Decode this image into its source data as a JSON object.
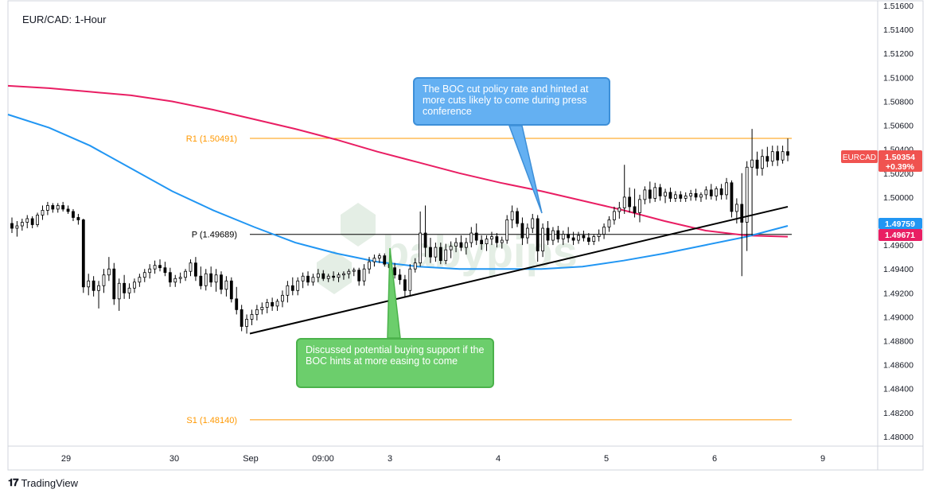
{
  "header": {
    "title": "EUR/CAD: 1-Hour"
  },
  "footer": {
    "brand": "TradingView"
  },
  "price_badges": {
    "symbol": "EURCAD",
    "last": "1.50354",
    "change": "+0.39%",
    "blue_ma": "1.49759",
    "pink_ma": "1.49671",
    "colors": {
      "symbol_bg": "#f05350",
      "blue": "#2196f3",
      "pink": "#e91e63"
    }
  },
  "annotations": {
    "boc_cut": "The BOC cut policy rate and hinted at more cuts likely to come during press conference",
    "buying_support": "Discussed potential buying support if the BOC hints at more easing to come"
  },
  "chart_data": {
    "type": "candlestick",
    "title": "EUR/CAD: 1-Hour",
    "y_axis_side": "right",
    "ylim": [
      1.4792,
      1.5164
    ],
    "y_ticks": [
      "1.51600",
      "1.51400",
      "1.51200",
      "1.51000",
      "1.50800",
      "1.50600",
      "1.50400",
      "1.50200",
      "1.50000",
      "1.49800",
      "1.49600",
      "1.49400",
      "1.49200",
      "1.49000",
      "1.48800",
      "1.48600",
      "1.48400",
      "1.48200",
      "1.48000"
    ],
    "x_ticks": [
      "29",
      "30",
      "Sep",
      "09:00",
      "3",
      "4",
      "5",
      "6",
      "9"
    ],
    "levels": [
      {
        "name": "R1",
        "label": "R1 (1.50491)",
        "value": 1.50491,
        "color": "#ff9800"
      },
      {
        "name": "P",
        "label": "P (1.49689)",
        "value": 1.49689,
        "color": "#000000"
      },
      {
        "name": "S1",
        "label": "S1 (1.48140)",
        "value": 1.4814,
        "color": "#ff9800"
      }
    ],
    "moving_averages": [
      {
        "color": "#e91e63",
        "points": [
          [
            0,
            1.5093
          ],
          [
            1,
            1.5091
          ],
          [
            2,
            1.5088
          ],
          [
            3,
            1.5085
          ],
          [
            4,
            1.508
          ],
          [
            5,
            1.5073
          ],
          [
            6,
            1.5065
          ],
          [
            7,
            1.5057
          ],
          [
            8,
            1.5048
          ],
          [
            9,
            1.5038
          ],
          [
            10,
            1.5029
          ],
          [
            11,
            1.502
          ],
          [
            12,
            1.5012
          ],
          [
            13,
            1.5005
          ],
          [
            14,
            1.4997
          ],
          [
            15,
            1.4989
          ],
          [
            16,
            1.498
          ],
          [
            17,
            1.4972
          ],
          [
            18,
            1.4968
          ],
          [
            19,
            1.4967
          ]
        ]
      },
      {
        "color": "#2196f3",
        "points": [
          [
            0,
            1.5069
          ],
          [
            1,
            1.5058
          ],
          [
            2,
            1.5043
          ],
          [
            3,
            1.5024
          ],
          [
            4,
            1.5005
          ],
          [
            5,
            1.4989
          ],
          [
            6,
            1.4975
          ],
          [
            7,
            1.4962
          ],
          [
            8,
            1.4953
          ],
          [
            9,
            1.4946
          ],
          [
            10,
            1.4942
          ],
          [
            11,
            1.494
          ],
          [
            12,
            1.494
          ],
          [
            13,
            1.494
          ],
          [
            14,
            1.4942
          ],
          [
            15,
            1.4947
          ],
          [
            16,
            1.4953
          ],
          [
            17,
            1.496
          ],
          [
            18,
            1.4967
          ],
          [
            19,
            1.4976
          ]
        ]
      }
    ],
    "trendline": {
      "start": [
        0,
        1.4886
      ],
      "end": [
        1,
        1.4992
      ]
    },
    "candles": [
      [
        1.4978,
        1.4983,
        1.497,
        1.4974
      ],
      [
        1.4974,
        1.498,
        1.4967,
        1.4976
      ],
      [
        1.4976,
        1.4982,
        1.4972,
        1.4979
      ],
      [
        1.4979,
        1.4985,
        1.4974,
        1.4982
      ],
      [
        1.4982,
        1.4984,
        1.4974,
        1.4977
      ],
      [
        1.4977,
        1.4987,
        1.4975,
        1.4985
      ],
      [
        1.4985,
        1.4993,
        1.4981,
        1.4989
      ],
      [
        1.4989,
        1.4996,
        1.4985,
        1.4993
      ],
      [
        1.4993,
        1.4995,
        1.4987,
        1.499
      ],
      [
        1.499,
        1.4995,
        1.4987,
        1.4993
      ],
      [
        1.4993,
        1.4996,
        1.4988,
        1.499
      ],
      [
        1.499,
        1.4993,
        1.4986,
        1.4988
      ],
      [
        1.4988,
        1.499,
        1.498,
        1.4983
      ],
      [
        1.4983,
        1.4986,
        1.4977,
        1.4981
      ],
      [
        1.4981,
        1.4982,
        1.492,
        1.4925
      ],
      [
        1.4925,
        1.4936,
        1.4918,
        1.493
      ],
      [
        1.493,
        1.4934,
        1.4917,
        1.4922
      ],
      [
        1.4922,
        1.493,
        1.4907,
        1.4926
      ],
      [
        1.4926,
        1.494,
        1.492,
        1.4935
      ],
      [
        1.4935,
        1.495,
        1.493,
        1.494
      ],
      [
        1.494,
        1.4945,
        1.491,
        1.4915
      ],
      [
        1.4915,
        1.4932,
        1.4905,
        1.4928
      ],
      [
        1.4928,
        1.4935,
        1.4915,
        1.492
      ],
      [
        1.492,
        1.4928,
        1.4915,
        1.4924
      ],
      [
        1.4924,
        1.4932,
        1.492,
        1.4929
      ],
      [
        1.4929,
        1.4936,
        1.4925,
        1.4933
      ],
      [
        1.4933,
        1.494,
        1.4929,
        1.4937
      ],
      [
        1.4937,
        1.4944,
        1.4932,
        1.494
      ],
      [
        1.494,
        1.4947,
        1.4936,
        1.4943
      ],
      [
        1.4943,
        1.4948,
        1.4938,
        1.4941
      ],
      [
        1.4941,
        1.4946,
        1.4934,
        1.4937
      ],
      [
        1.4937,
        1.4941,
        1.4925,
        1.4929
      ],
      [
        1.4929,
        1.4935,
        1.4925,
        1.4932
      ],
      [
        1.4932,
        1.4937,
        1.4928,
        1.4933
      ],
      [
        1.4933,
        1.494,
        1.493,
        1.4938
      ],
      [
        1.4938,
        1.4948,
        1.4934,
        1.4945
      ],
      [
        1.4945,
        1.495,
        1.493,
        1.4934
      ],
      [
        1.4934,
        1.4942,
        1.4923,
        1.4926
      ],
      [
        1.4926,
        1.494,
        1.4922,
        1.4936
      ],
      [
        1.4936,
        1.4942,
        1.4925,
        1.4929
      ],
      [
        1.4929,
        1.494,
        1.4921,
        1.4935
      ],
      [
        1.4935,
        1.4938,
        1.4919,
        1.4923
      ],
      [
        1.4923,
        1.4934,
        1.4917,
        1.493
      ],
      [
        1.493,
        1.4933,
        1.4912,
        1.4915
      ],
      [
        1.4915,
        1.4925,
        1.4902,
        1.4906
      ],
      [
        1.4906,
        1.491,
        1.4888,
        1.4892
      ],
      [
        1.4892,
        1.4902,
        1.4886,
        1.4898
      ],
      [
        1.4898,
        1.4906,
        1.4893,
        1.4902
      ],
      [
        1.4902,
        1.491,
        1.4897,
        1.4906
      ],
      [
        1.4906,
        1.4912,
        1.4902,
        1.4908
      ],
      [
        1.4908,
        1.4915,
        1.4903,
        1.4912
      ],
      [
        1.4912,
        1.4916,
        1.4905,
        1.4909
      ],
      [
        1.4909,
        1.4915,
        1.4905,
        1.4913
      ],
      [
        1.4913,
        1.4922,
        1.4908,
        1.4918
      ],
      [
        1.4918,
        1.493,
        1.4912,
        1.4926
      ],
      [
        1.4926,
        1.4933,
        1.4918,
        1.4922
      ],
      [
        1.4922,
        1.4933,
        1.4918,
        1.493
      ],
      [
        1.493,
        1.4937,
        1.4924,
        1.4934
      ],
      [
        1.4934,
        1.4938,
        1.4926,
        1.4929
      ],
      [
        1.4929,
        1.4936,
        1.4926,
        1.4933
      ],
      [
        1.4933,
        1.494,
        1.4929,
        1.4936
      ],
      [
        1.4936,
        1.4939,
        1.493,
        1.4932
      ],
      [
        1.4932,
        1.4936,
        1.4929,
        1.4934
      ],
      [
        1.4934,
        1.4938,
        1.493,
        1.4933
      ],
      [
        1.4933,
        1.4937,
        1.4929,
        1.4935
      ],
      [
        1.4935,
        1.4938,
        1.4931,
        1.4936
      ],
      [
        1.4936,
        1.494,
        1.4932,
        1.4938
      ],
      [
        1.4938,
        1.4941,
        1.4934,
        1.4939
      ],
      [
        1.4939,
        1.4941,
        1.4926,
        1.493
      ],
      [
        1.493,
        1.4944,
        1.4926,
        1.494
      ],
      [
        1.494,
        1.495,
        1.4936,
        1.4946
      ],
      [
        1.4946,
        1.4952,
        1.4942,
        1.4949
      ],
      [
        1.4949,
        1.4953,
        1.4945,
        1.4951
      ],
      [
        1.4951,
        1.4953,
        1.4942,
        1.4944
      ],
      [
        1.4944,
        1.4948,
        1.4937,
        1.4941
      ],
      [
        1.4941,
        1.4945,
        1.4932,
        1.4935
      ],
      [
        1.4935,
        1.494,
        1.4927,
        1.4931
      ],
      [
        1.4931,
        1.4935,
        1.4916,
        1.4922
      ],
      [
        1.4922,
        1.4944,
        1.4918,
        1.494
      ],
      [
        1.494,
        1.4949,
        1.4937,
        1.4945
      ],
      [
        1.4945,
        1.4988,
        1.4942,
        1.497
      ],
      [
        1.497,
        1.4993,
        1.495,
        1.4958
      ],
      [
        1.4958,
        1.4966,
        1.4945,
        1.495
      ],
      [
        1.495,
        1.4962,
        1.4946,
        1.4958
      ],
      [
        1.4958,
        1.4962,
        1.4944,
        1.4947
      ],
      [
        1.4947,
        1.4961,
        1.4944,
        1.4956
      ],
      [
        1.4956,
        1.4963,
        1.4949,
        1.4959
      ],
      [
        1.4959,
        1.4966,
        1.4954,
        1.4962
      ],
      [
        1.4962,
        1.4968,
        1.4955,
        1.4958
      ],
      [
        1.4958,
        1.4966,
        1.4952,
        1.4962
      ],
      [
        1.4962,
        1.4975,
        1.4958,
        1.497
      ],
      [
        1.497,
        1.4978,
        1.496,
        1.4964
      ],
      [
        1.4964,
        1.4968,
        1.4956,
        1.4961
      ],
      [
        1.4961,
        1.4968,
        1.4955,
        1.4965
      ],
      [
        1.4965,
        1.4971,
        1.496,
        1.4967
      ],
      [
        1.4967,
        1.497,
        1.4958,
        1.4962
      ],
      [
        1.4962,
        1.4967,
        1.4957,
        1.4964
      ],
      [
        1.4964,
        1.4985,
        1.4961,
        1.4981
      ],
      [
        1.4981,
        1.4993,
        1.4974,
        1.4988
      ],
      [
        1.4988,
        1.4991,
        1.4975,
        1.4978
      ],
      [
        1.4978,
        1.4983,
        1.496,
        1.4966
      ],
      [
        1.4966,
        1.4978,
        1.4961,
        1.4974
      ],
      [
        1.4974,
        1.4986,
        1.497,
        1.4982
      ],
      [
        1.4982,
        1.4985,
        1.4946,
        1.4955
      ],
      [
        1.4955,
        1.4978,
        1.495,
        1.4974
      ],
      [
        1.4974,
        1.498,
        1.496,
        1.4964
      ],
      [
        1.4964,
        1.4975,
        1.496,
        1.4972
      ],
      [
        1.4972,
        1.4976,
        1.4962,
        1.4965
      ],
      [
        1.4965,
        1.4972,
        1.496,
        1.4969
      ],
      [
        1.4969,
        1.4975,
        1.4962,
        1.4966
      ],
      [
        1.4966,
        1.4971,
        1.496,
        1.4964
      ],
      [
        1.4964,
        1.4971,
        1.4961,
        1.4968
      ],
      [
        1.4968,
        1.4972,
        1.4963,
        1.4966
      ],
      [
        1.4966,
        1.497,
        1.496,
        1.4963
      ],
      [
        1.4963,
        1.4969,
        1.496,
        1.4967
      ],
      [
        1.4967,
        1.4973,
        1.4963,
        1.4969
      ],
      [
        1.4969,
        1.4978,
        1.4965,
        1.4975
      ],
      [
        1.4975,
        1.4984,
        1.4971,
        1.4981
      ],
      [
        1.4981,
        1.4992,
        1.4977,
        1.4988
      ],
      [
        1.4988,
        1.4996,
        1.4982,
        1.4991
      ],
      [
        1.4991,
        1.5027,
        1.4986,
        1.5
      ],
      [
        1.5,
        1.5008,
        1.4987,
        1.4992
      ],
      [
        1.4992,
        1.5007,
        1.4983,
        1.4987
      ],
      [
        1.4987,
        1.5002,
        1.4979,
        1.4998
      ],
      [
        1.4998,
        1.5009,
        1.4994,
        1.5006
      ],
      [
        1.5006,
        1.5013,
        1.4995,
        1.4999
      ],
      [
        1.4999,
        1.5012,
        1.4996,
        1.5008
      ],
      [
        1.5008,
        1.5011,
        1.4997,
        1.5001
      ],
      [
        1.5001,
        1.5007,
        1.4995,
        1.5004
      ],
      [
        1.5004,
        1.5008,
        1.4996,
        1.4999
      ],
      [
        1.4999,
        1.5005,
        1.4996,
        1.5002
      ],
      [
        1.5002,
        1.5005,
        1.4996,
        1.4999
      ],
      [
        1.4999,
        1.5004,
        1.4996,
        1.5001
      ],
      [
        1.5001,
        1.5006,
        1.4997,
        1.5003
      ],
      [
        1.5003,
        1.5007,
        1.4997,
        1.5
      ],
      [
        1.5,
        1.5004,
        1.4996,
        1.5002
      ],
      [
        1.5002,
        1.5009,
        1.4998,
        1.5006
      ],
      [
        1.5006,
        1.5011,
        1.4998,
        1.5001
      ],
      [
        1.5001,
        1.5009,
        1.4997,
        1.5007
      ],
      [
        1.5007,
        1.5011,
        1.4998,
        1.5002
      ],
      [
        1.5002,
        1.5016,
        1.4998,
        1.5012
      ],
      [
        1.5012,
        1.5014,
        1.4983,
        1.4988
      ],
      [
        1.4988,
        1.4999,
        1.4978,
        1.4994
      ],
      [
        1.4994,
        1.502,
        1.4934,
        1.4979
      ],
      [
        1.4979,
        1.503,
        1.4955,
        1.5025
      ],
      [
        1.5025,
        1.5057,
        1.4968,
        1.5031
      ],
      [
        1.5031,
        1.5038,
        1.5018,
        1.5024
      ],
      [
        1.5024,
        1.504,
        1.5018,
        1.5034
      ],
      [
        1.5034,
        1.5042,
        1.5025,
        1.503
      ],
      [
        1.503,
        1.5043,
        1.5026,
        1.5038
      ],
      [
        1.5038,
        1.5043,
        1.5026,
        1.5031
      ],
      [
        1.5031,
        1.5043,
        1.5028,
        1.5038
      ],
      [
        1.5038,
        1.5049,
        1.503,
        1.5035
      ]
    ]
  }
}
